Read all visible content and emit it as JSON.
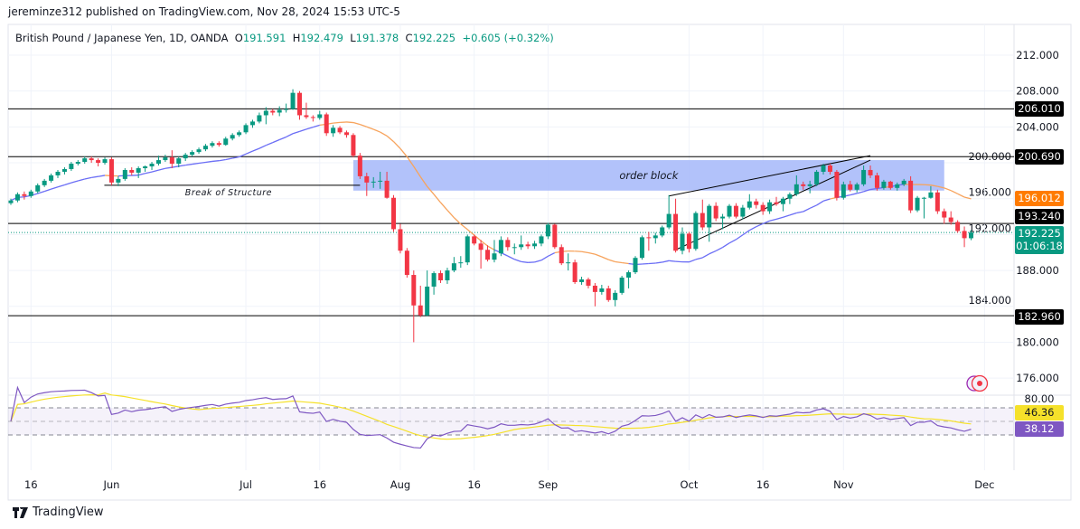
{
  "header": {
    "published": "jereminze312 published on TradingView.com, Nov 28, 2024 15:53 UTC-5"
  },
  "legend": {
    "symbol": "British Pound / Japanese Yen, 1D, OANDA",
    "o_label": "O",
    "o": "191.591",
    "h_label": "H",
    "h": "192.479",
    "l_label": "L",
    "l": "191.378",
    "c_label": "C",
    "c": "192.225",
    "change": "+0.605 (+0.32%)"
  },
  "badges": {
    "level_206": "206.010",
    "level_200": "200.690",
    "ma": "196.012",
    "level_193": "193.240",
    "last_price": "192.225",
    "countdown": "01:06:18",
    "level_183": "182.960",
    "rsi_ma": "46.36",
    "rsi": "38.12",
    "rsi_80": "80.00"
  },
  "footer": {
    "brand": "TradingView"
  },
  "colors": {
    "up": "#089981",
    "down": "#f23645",
    "ma_up": "#6a6df5",
    "ma_down": "#f7a35c",
    "order_block": "#aabbf9",
    "rsi": "#7e57c2",
    "rsi_ma": "#f5e12a",
    "ma_badge": "#ff7b00",
    "last_badge": "#089981"
  },
  "icons": {
    "alert": "alert-circle-icon",
    "logo": "tradingview-logo-icon"
  },
  "chart_data": {
    "type": "candlestick",
    "symbol": "GBPJPY",
    "timeframe": "1D",
    "ylim": [
      174,
      214
    ],
    "grid": true,
    "price_ticks": [
      "212.000",
      "208.000",
      "204.000",
      "200.000",
      "196.000",
      "192.000",
      "188.000",
      "184.000",
      "180.000",
      "176.000"
    ],
    "time_ticks": [
      {
        "label": "16",
        "date": "2024-05-16"
      },
      {
        "label": "Jun",
        "date": "2024-06-03"
      },
      {
        "label": "Jul",
        "date": "2024-07-01"
      },
      {
        "label": "16",
        "date": "2024-07-16"
      },
      {
        "label": "Aug",
        "date": "2024-08-01"
      },
      {
        "label": "16",
        "date": "2024-08-16"
      },
      {
        "label": "Sep",
        "date": "2024-09-02"
      },
      {
        "label": "Oct",
        "date": "2024-10-01"
      },
      {
        "label": "16",
        "date": "2024-10-16"
      },
      {
        "label": "Nov",
        "date": "2024-11-01"
      },
      {
        "label": "Dec",
        "date": "2024-12-02"
      }
    ],
    "horizontal_levels": [
      206.01,
      200.69,
      193.24,
      182.96
    ],
    "last_price": 192.225,
    "order_block": {
      "label": "order block",
      "from": "2024-07-23",
      "to": "2024-11-22",
      "low": 196.9,
      "high": 200.3
    },
    "break_of_structure": {
      "label": "Break of Structure",
      "from": "2024-06-03",
      "to": "2024-07-24",
      "price": 197.5
    },
    "trendlines": [
      {
        "from": [
          "2024-09-26",
          196.3
        ],
        "to": [
          "2024-11-07",
          200.8
        ]
      },
      {
        "from": [
          "2024-09-27",
          190.3
        ],
        "to": [
          "2024-11-07",
          200.3
        ]
      }
    ],
    "moving_average": {
      "type": "SMA",
      "length": 20,
      "last_value": 196.012
    },
    "rsi": {
      "length": 14,
      "upper": 70,
      "middle": 50,
      "lower": 30,
      "value": 38.12,
      "ma_value": 46.36
    },
    "candles": [
      [
        "2024-05-13",
        195.5,
        196.0,
        195.3,
        195.8
      ],
      [
        "2024-05-14",
        195.8,
        196.7,
        195.6,
        196.5
      ],
      [
        "2024-05-15",
        196.5,
        196.8,
        195.9,
        196.3
      ],
      [
        "2024-05-16",
        196.3,
        197.0,
        196.1,
        196.8
      ],
      [
        "2024-05-17",
        196.8,
        197.7,
        196.6,
        197.5
      ],
      [
        "2024-05-20",
        197.5,
        198.2,
        197.3,
        198.0
      ],
      [
        "2024-05-21",
        198.0,
        198.8,
        197.8,
        198.6
      ],
      [
        "2024-05-22",
        198.6,
        199.2,
        198.3,
        199.0
      ],
      [
        "2024-05-23",
        199.0,
        199.5,
        198.7,
        199.3
      ],
      [
        "2024-05-24",
        199.3,
        200.1,
        199.1,
        199.9
      ],
      [
        "2024-05-27",
        199.9,
        200.3,
        199.7,
        200.1
      ],
      [
        "2024-05-28",
        200.1,
        200.7,
        199.9,
        200.5
      ],
      [
        "2024-05-29",
        200.5,
        200.7,
        200.0,
        200.3
      ],
      [
        "2024-05-30",
        200.3,
        200.5,
        199.6,
        200.0
      ],
      [
        "2024-05-31",
        200.0,
        200.6,
        199.8,
        200.4
      ],
      [
        "2024-06-03",
        200.4,
        200.6,
        197.5,
        197.8
      ],
      [
        "2024-06-04",
        197.8,
        198.5,
        197.4,
        198.2
      ],
      [
        "2024-06-05",
        198.2,
        199.4,
        198.0,
        199.2
      ],
      [
        "2024-06-06",
        199.2,
        199.5,
        198.6,
        198.9
      ],
      [
        "2024-06-07",
        198.9,
        199.6,
        198.3,
        199.4
      ],
      [
        "2024-06-10",
        199.4,
        199.7,
        199.0,
        199.6
      ],
      [
        "2024-06-11",
        199.6,
        200.1,
        199.2,
        199.9
      ],
      [
        "2024-06-12",
        199.9,
        200.8,
        199.7,
        200.3
      ],
      [
        "2024-06-13",
        200.3,
        200.9,
        200.1,
        200.6
      ],
      [
        "2024-06-14",
        200.6,
        201.4,
        199.4,
        199.9
      ],
      [
        "2024-06-17",
        199.9,
        200.7,
        199.5,
        200.5
      ],
      [
        "2024-06-18",
        200.5,
        201.1,
        200.2,
        200.9
      ],
      [
        "2024-06-19",
        200.9,
        201.4,
        200.7,
        201.2
      ],
      [
        "2024-06-20",
        201.2,
        201.7,
        201.0,
        201.5
      ],
      [
        "2024-06-21",
        201.5,
        202.1,
        201.3,
        201.9
      ],
      [
        "2024-06-24",
        201.9,
        202.4,
        201.7,
        202.2
      ],
      [
        "2024-06-25",
        202.2,
        202.4,
        201.8,
        202.0
      ],
      [
        "2024-06-26",
        202.0,
        202.9,
        201.9,
        202.7
      ],
      [
        "2024-06-27",
        202.7,
        203.3,
        202.5,
        203.1
      ],
      [
        "2024-06-28",
        203.1,
        203.6,
        202.9,
        203.4
      ],
      [
        "2024-07-01",
        203.4,
        204.4,
        203.2,
        204.2
      ],
      [
        "2024-07-02",
        204.2,
        204.8,
        203.9,
        204.6
      ],
      [
        "2024-07-03",
        204.6,
        205.6,
        204.4,
        205.3
      ],
      [
        "2024-07-04",
        205.3,
        206.2,
        204.3,
        205.8
      ],
      [
        "2024-07-05",
        205.8,
        206.0,
        205.3,
        205.6
      ],
      [
        "2024-07-08",
        205.6,
        206.3,
        205.2,
        205.9
      ],
      [
        "2024-07-09",
        205.9,
        206.6,
        205.6,
        206.0
      ],
      [
        "2024-07-10",
        206.0,
        208.2,
        205.9,
        207.8
      ],
      [
        "2024-07-11",
        207.8,
        208.0,
        204.8,
        205.3
      ],
      [
        "2024-07-12",
        205.3,
        206.7,
        204.9,
        205.1
      ],
      [
        "2024-07-15",
        205.1,
        205.3,
        204.6,
        205.0
      ],
      [
        "2024-07-16",
        205.0,
        205.8,
        204.8,
        205.4
      ],
      [
        "2024-07-17",
        205.4,
        205.6,
        203.0,
        203.3
      ],
      [
        "2024-07-18",
        203.3,
        204.2,
        202.9,
        203.9
      ],
      [
        "2024-07-19",
        203.9,
        204.1,
        203.2,
        203.4
      ],
      [
        "2024-07-22",
        203.4,
        203.6,
        202.8,
        203.1
      ],
      [
        "2024-07-23",
        203.1,
        203.3,
        200.6,
        200.8
      ],
      [
        "2024-07-24",
        200.8,
        201.1,
        198.2,
        198.5
      ],
      [
        "2024-07-25",
        198.5,
        198.9,
        196.3,
        197.8
      ],
      [
        "2024-07-26",
        197.8,
        198.4,
        197.2,
        197.9
      ],
      [
        "2024-07-29",
        197.9,
        199.0,
        197.1,
        198.0
      ],
      [
        "2024-07-30",
        198.0,
        199.0,
        196.0,
        196.1
      ],
      [
        "2024-07-31",
        196.1,
        196.4,
        192.3,
        192.6
      ],
      [
        "2024-08-01",
        192.6,
        193.2,
        189.9,
        190.2
      ],
      [
        "2024-08-02",
        190.2,
        190.5,
        187.2,
        187.5
      ],
      [
        "2024-08-05",
        187.5,
        188.0,
        180.0,
        184.1
      ],
      [
        "2024-08-06",
        184.1,
        186.3,
        182.8,
        183.0
      ],
      [
        "2024-08-07",
        183.0,
        188.0,
        182.9,
        186.2
      ],
      [
        "2024-08-08",
        186.2,
        187.9,
        185.3,
        187.7
      ],
      [
        "2024-08-09",
        187.7,
        188.0,
        186.6,
        186.9
      ],
      [
        "2024-08-12",
        186.9,
        188.3,
        186.5,
        188.0
      ],
      [
        "2024-08-13",
        188.0,
        189.5,
        187.8,
        188.8
      ],
      [
        "2024-08-14",
        188.8,
        189.6,
        188.3,
        188.9
      ],
      [
        "2024-08-15",
        188.9,
        192.0,
        188.6,
        191.8
      ],
      [
        "2024-08-16",
        191.8,
        192.0,
        190.8,
        191.0
      ],
      [
        "2024-08-19",
        191.0,
        191.4,
        188.2,
        190.3
      ],
      [
        "2024-08-20",
        190.3,
        190.8,
        189.0,
        189.2
      ],
      [
        "2024-08-21",
        189.2,
        191.4,
        188.9,
        189.9
      ],
      [
        "2024-08-22",
        189.9,
        191.8,
        189.6,
        191.4
      ],
      [
        "2024-08-23",
        191.4,
        191.7,
        190.2,
        190.6
      ],
      [
        "2024-08-26",
        190.6,
        191.0,
        189.8,
        190.6
      ],
      [
        "2024-08-27",
        190.6,
        191.9,
        190.3,
        190.9
      ],
      [
        "2024-08-28",
        190.9,
        191.2,
        190.4,
        190.7
      ],
      [
        "2024-08-29",
        190.7,
        191.3,
        190.4,
        191.0
      ],
      [
        "2024-08-30",
        191.0,
        192.0,
        190.7,
        191.8
      ],
      [
        "2024-09-02",
        191.8,
        193.3,
        191.5,
        193.1
      ],
      [
        "2024-09-03",
        193.1,
        193.2,
        190.4,
        190.6
      ],
      [
        "2024-09-04",
        190.6,
        190.9,
        188.6,
        188.8
      ],
      [
        "2024-09-05",
        188.8,
        189.9,
        188.0,
        188.9
      ],
      [
        "2024-09-06",
        188.9,
        189.2,
        186.5,
        186.7
      ],
      [
        "2024-09-09",
        186.7,
        187.3,
        186.4,
        187.0
      ],
      [
        "2024-09-10",
        187.0,
        187.2,
        186.0,
        186.3
      ],
      [
        "2024-09-11",
        186.3,
        186.6,
        184.0,
        185.6
      ],
      [
        "2024-09-12",
        185.6,
        186.4,
        185.3,
        186.0
      ],
      [
        "2024-09-13",
        186.0,
        186.3,
        184.5,
        184.7
      ],
      [
        "2024-09-16",
        184.7,
        185.8,
        184.0,
        185.5
      ],
      [
        "2024-09-17",
        185.5,
        187.4,
        185.3,
        187.2
      ],
      [
        "2024-09-18",
        187.2,
        188.0,
        186.0,
        187.8
      ],
      [
        "2024-09-19",
        187.8,
        189.6,
        187.6,
        189.4
      ],
      [
        "2024-09-20",
        189.4,
        191.9,
        189.2,
        191.7
      ],
      [
        "2024-09-23",
        191.7,
        192.3,
        190.2,
        191.6
      ],
      [
        "2024-09-24",
        191.6,
        192.2,
        191.0,
        191.9
      ],
      [
        "2024-09-25",
        191.9,
        193.0,
        191.7,
        192.8
      ],
      [
        "2024-09-26",
        192.8,
        196.4,
        192.6,
        194.3
      ],
      [
        "2024-09-27",
        194.3,
        196.0,
        190.0,
        190.2
      ],
      [
        "2024-09-30",
        190.2,
        192.8,
        189.8,
        192.1
      ],
      [
        "2024-10-01",
        192.1,
        192.3,
        190.0,
        190.4
      ],
      [
        "2024-10-02",
        190.4,
        194.6,
        190.2,
        194.4
      ],
      [
        "2024-10-03",
        194.4,
        195.9,
        192.5,
        192.8
      ],
      [
        "2024-10-04",
        192.8,
        195.4,
        191.2,
        195.2
      ],
      [
        "2024-10-07",
        195.2,
        195.6,
        193.5,
        193.8
      ],
      [
        "2024-10-08",
        193.8,
        194.3,
        192.6,
        194.0
      ],
      [
        "2024-10-09",
        194.0,
        195.4,
        193.8,
        195.2
      ],
      [
        "2024-10-10",
        195.2,
        195.5,
        193.8,
        194.0
      ],
      [
        "2024-10-11",
        194.0,
        195.3,
        193.7,
        195.0
      ],
      [
        "2024-10-14",
        195.0,
        196.5,
        194.8,
        195.7
      ],
      [
        "2024-10-15",
        195.7,
        196.0,
        194.9,
        195.3
      ],
      [
        "2024-10-16",
        195.3,
        195.6,
        194.2,
        194.6
      ],
      [
        "2024-10-17",
        194.6,
        195.9,
        194.3,
        195.6
      ],
      [
        "2024-10-18",
        195.6,
        196.2,
        195.2,
        195.4
      ],
      [
        "2024-10-21",
        195.4,
        196.2,
        194.6,
        196.0
      ],
      [
        "2024-10-22",
        196.0,
        196.7,
        195.4,
        196.5
      ],
      [
        "2024-10-23",
        196.5,
        198.6,
        196.3,
        197.6
      ],
      [
        "2024-10-24",
        197.6,
        197.9,
        197.0,
        197.4
      ],
      [
        "2024-10-25",
        197.4,
        198.0,
        196.6,
        197.6
      ],
      [
        "2024-10-28",
        197.6,
        199.2,
        197.4,
        199.0
      ],
      [
        "2024-10-29",
        199.0,
        199.9,
        198.7,
        199.7
      ],
      [
        "2024-10-30",
        199.7,
        199.9,
        198.7,
        199.0
      ],
      [
        "2024-10-31",
        199.0,
        199.2,
        195.8,
        196.1
      ],
      [
        "2024-11-01",
        196.1,
        197.9,
        195.9,
        197.6
      ],
      [
        "2024-11-04",
        197.6,
        198.0,
        196.8,
        197.0
      ],
      [
        "2024-11-05",
        197.0,
        197.8,
        196.7,
        197.6
      ],
      [
        "2024-11-06",
        197.6,
        199.7,
        197.4,
        199.2
      ],
      [
        "2024-11-07",
        199.2,
        199.7,
        198.3,
        198.6
      ],
      [
        "2024-11-08",
        198.6,
        198.9,
        196.9,
        197.2
      ],
      [
        "2024-11-11",
        197.2,
        198.1,
        197.0,
        197.9
      ],
      [
        "2024-11-12",
        197.9,
        198.0,
        197.0,
        197.2
      ],
      [
        "2024-11-13",
        197.2,
        197.8,
        196.9,
        197.6
      ],
      [
        "2024-11-14",
        197.6,
        198.2,
        197.4,
        198.0
      ],
      [
        "2024-11-15",
        198.0,
        198.5,
        194.4,
        194.7
      ],
      [
        "2024-11-18",
        194.7,
        196.3,
        194.5,
        196.1
      ],
      [
        "2024-11-19",
        196.0,
        196.2,
        193.8,
        196.1
      ],
      [
        "2024-11-20",
        196.1,
        197.4,
        196.0,
        196.7
      ],
      [
        "2024-11-21",
        196.7,
        197.0,
        194.3,
        194.6
      ],
      [
        "2024-11-22",
        194.6,
        194.9,
        193.2,
        193.9
      ],
      [
        "2024-11-25",
        193.9,
        194.6,
        193.1,
        193.4
      ],
      [
        "2024-11-26",
        193.4,
        193.6,
        192.2,
        192.4
      ],
      [
        "2024-11-27",
        192.4,
        192.9,
        190.6,
        191.6
      ],
      [
        "2024-11-28",
        191.591,
        192.479,
        191.378,
        192.225
      ]
    ]
  }
}
